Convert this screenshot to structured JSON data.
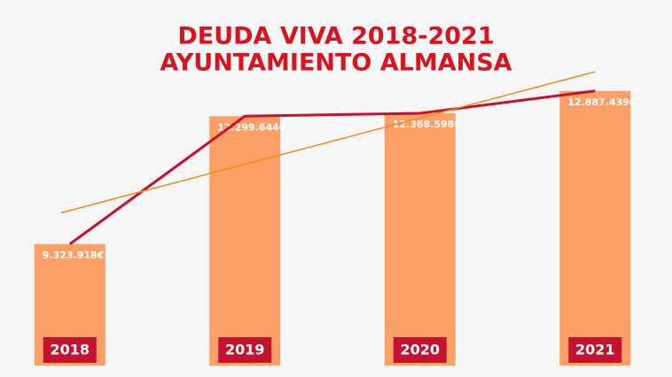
{
  "chart_data": {
    "type": "bar",
    "title_lines": [
      "DEUDA VIVA 2018-2021",
      "AYUNTAMIENTO ALMANSA"
    ],
    "categories": [
      "2018",
      "2019",
      "2020",
      "2021"
    ],
    "values": [
      9323918,
      12299644,
      12368598,
      12887439
    ],
    "value_labels": [
      "9.323.918€",
      "12.299.644€",
      "12.368.598€",
      "12.887.439€"
    ],
    "color": "#fca067",
    "line_color": "#c8102e",
    "trendline_color": "#f08a1e",
    "label_box_color": "#c41230",
    "connect_line": true,
    "trendline": true,
    "ylim": [
      6500000,
      13500000
    ]
  }
}
